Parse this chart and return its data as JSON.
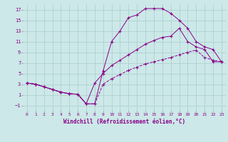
{
  "xlabel": "Windchill (Refroidissement éolien,°C)",
  "bg_color": "#cce8e8",
  "grid_color": "#aacccc",
  "line_color": "#880088",
  "xlim": [
    -0.5,
    23.5
  ],
  "ylim": [
    -2,
    18
  ],
  "xticks": [
    0,
    1,
    2,
    3,
    4,
    5,
    6,
    7,
    8,
    9,
    10,
    11,
    12,
    13,
    14,
    15,
    16,
    17,
    18,
    19,
    20,
    21,
    22,
    23
  ],
  "yticks": [
    -1,
    1,
    3,
    5,
    7,
    9,
    11,
    13,
    15,
    17
  ],
  "line1_x": [
    0,
    1,
    2,
    3,
    4,
    5,
    6,
    7,
    8,
    9,
    10,
    11,
    12,
    13,
    14,
    15,
    16,
    17,
    18,
    19,
    20,
    21,
    22,
    23
  ],
  "line1_y": [
    3.2,
    3.0,
    2.5,
    2.0,
    1.5,
    1.2,
    1.1,
    -0.7,
    -0.7,
    5.5,
    11.0,
    13.0,
    15.5,
    16.0,
    17.2,
    17.2,
    17.2,
    16.3,
    15.0,
    13.5,
    11.0,
    10.0,
    9.5,
    7.2
  ],
  "line2_x": [
    0,
    1,
    2,
    3,
    4,
    5,
    6,
    7,
    8,
    9,
    10,
    11,
    12,
    13,
    14,
    15,
    16,
    17,
    18,
    19,
    20,
    21,
    22,
    23
  ],
  "line2_y": [
    3.2,
    3.0,
    2.5,
    2.0,
    1.5,
    1.2,
    1.1,
    -0.7,
    3.2,
    5.0,
    6.5,
    7.5,
    8.5,
    9.5,
    10.5,
    11.2,
    11.8,
    12.0,
    13.5,
    11.0,
    10.0,
    9.5,
    7.2,
    7.2
  ],
  "line3_x": [
    0,
    1,
    2,
    3,
    4,
    5,
    6,
    7,
    8,
    9,
    10,
    11,
    12,
    13,
    14,
    15,
    16,
    17,
    18,
    19,
    20,
    21,
    22,
    23
  ],
  "line3_y": [
    3.2,
    3.0,
    2.5,
    2.0,
    1.5,
    1.2,
    1.1,
    -0.7,
    -0.7,
    3.0,
    4.0,
    4.8,
    5.6,
    6.2,
    6.8,
    7.2,
    7.6,
    8.0,
    8.5,
    9.0,
    9.4,
    8.0,
    7.5,
    7.2
  ]
}
